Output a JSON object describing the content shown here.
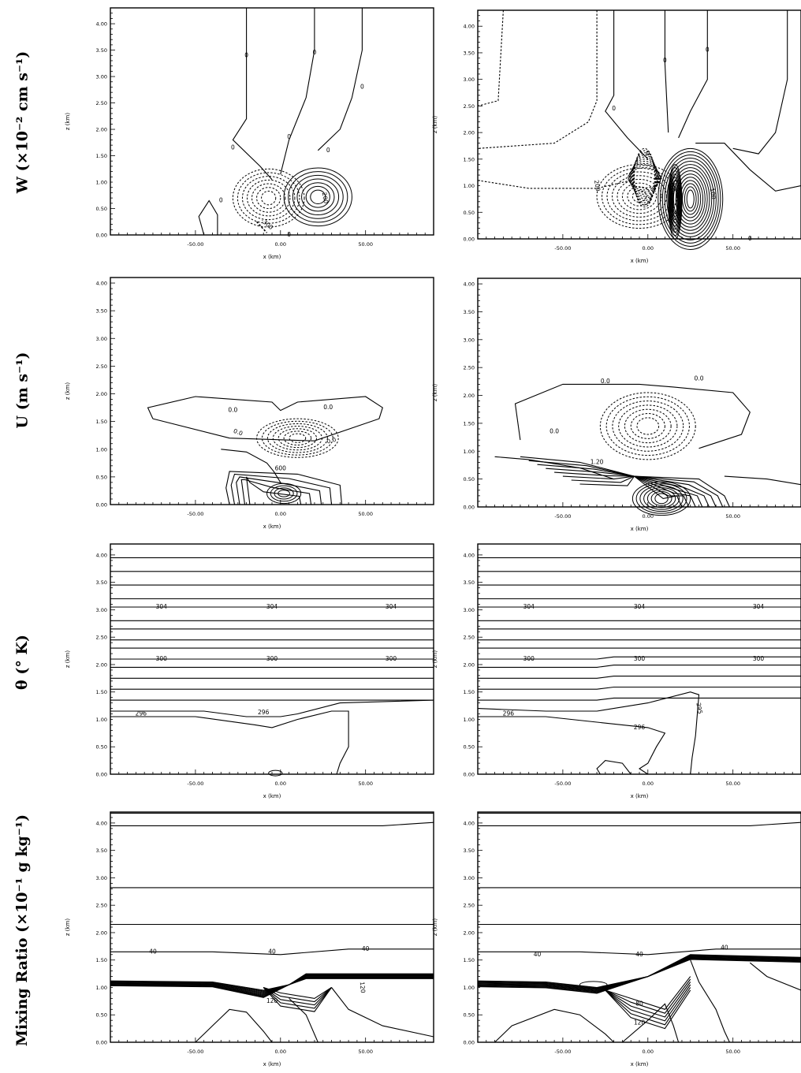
{
  "row_labels": [
    "W (×10⁻² cm s⁻¹)",
    "U (m s⁻¹)",
    "θ (° K)",
    "Mixing Ratio (×10⁻¹ g kg⁻¹)"
  ],
  "chart_data": [
    {
      "type": "contour",
      "panel": "W-left",
      "xlabel": "x (km)",
      "ylabel": "z (km)",
      "xlim": [
        -100,
        90
      ],
      "ylim": [
        0,
        4.3
      ],
      "xticks": [
        "-50.00",
        "0.00",
        "50.00"
      ],
      "yticks": [
        "0.00",
        "0.50",
        "1.00",
        "1.50",
        "2.00",
        "2.50",
        "3.00",
        "3.50",
        "4.00"
      ],
      "contour_labels": [
        "0",
        "0",
        "0",
        "0",
        "0",
        "0",
        "0",
        "0",
        "-300",
        "200"
      ]
    },
    {
      "type": "contour",
      "panel": "W-right",
      "xlabel": "x (km)",
      "ylabel": "z (km)",
      "xlim": [
        -100,
        90
      ],
      "ylim": [
        0,
        4.3
      ],
      "xticks": [
        "-50.00",
        "0.00",
        "50.00"
      ],
      "yticks": [
        "0.00",
        "0.50",
        "1.00",
        "1.50",
        "2.00",
        "2.50",
        "3.00",
        "3.50",
        "4.00"
      ],
      "contour_labels": [
        "0",
        "0",
        "0",
        "0",
        "0",
        "200",
        "100"
      ]
    },
    {
      "type": "contour",
      "panel": "U-left",
      "xlabel": "x (km)",
      "ylabel": "z (km)",
      "xlim": [
        -100,
        90
      ],
      "ylim": [
        0,
        4.1
      ],
      "xticks": [
        "-50.00",
        "0.00",
        "50.00"
      ],
      "yticks": [
        "0.00",
        "0.50",
        "1.00",
        "1.50",
        "2.00",
        "2.50",
        "3.00",
        "3.50",
        "4.00"
      ],
      "contour_labels": [
        "0.0",
        "0.0",
        "0.0",
        "0.0",
        "600"
      ]
    },
    {
      "type": "contour",
      "panel": "U-right",
      "xlabel": "x (km)",
      "ylabel": "z (km)",
      "xlim": [
        -100,
        90
      ],
      "ylim": [
        0,
        4.1
      ],
      "xticks": [
        "-50.00",
        "0.00",
        "50.00"
      ],
      "yticks": [
        "0.00",
        "0.50",
        "1.00",
        "1.50",
        "2.00",
        "2.50",
        "3.00",
        "3.50",
        "4.00"
      ],
      "contour_labels": [
        "0.0",
        "0.0",
        "0.0",
        "1.20"
      ]
    },
    {
      "type": "contour",
      "panel": "theta-left",
      "xlabel": "x (km)",
      "ylabel": "z (km)",
      "xlim": [
        -100,
        90
      ],
      "ylim": [
        0,
        4.2
      ],
      "xticks": [
        "-50.00",
        "0.00",
        "50.00"
      ],
      "yticks": [
        "0.00",
        "0.50",
        "1.00",
        "1.50",
        "2.00",
        "2.50",
        "3.00",
        "3.50",
        "4.00"
      ],
      "contour_labels": [
        "304",
        "304",
        "304",
        "300",
        "300",
        "300",
        "296",
        "296"
      ]
    },
    {
      "type": "contour",
      "panel": "theta-right",
      "xlabel": "x (km)",
      "ylabel": "z (km)",
      "xlim": [
        -100,
        90
      ],
      "ylim": [
        0,
        4.2
      ],
      "xticks": [
        "-50.00",
        "0.00",
        "50.00"
      ],
      "yticks": [
        "0.00",
        "0.50",
        "1.00",
        "1.50",
        "2.00",
        "2.50",
        "3.00",
        "3.50",
        "4.00"
      ],
      "contour_labels": [
        "304",
        "304",
        "304",
        "300",
        "300",
        "300",
        "296",
        "296",
        "295"
      ]
    },
    {
      "type": "contour",
      "panel": "mixing-left",
      "xlabel": "x (km)",
      "ylabel": "z (km)",
      "xlim": [
        -100,
        90
      ],
      "ylim": [
        0,
        4.2
      ],
      "xticks": [
        "-50.00",
        "0.00",
        "50.00"
      ],
      "yticks": [
        "0.00",
        "0.50",
        "1.00",
        "1.50",
        "2.00",
        "2.50",
        "3.00",
        "3.50",
        "4.00"
      ],
      "contour_labels": [
        "40",
        "40",
        "40",
        "120",
        "120"
      ]
    },
    {
      "type": "contour",
      "panel": "mixing-right",
      "xlabel": "x (km)",
      "ylabel": "z (km)",
      "xlim": [
        -100,
        90
      ],
      "ylim": [
        0,
        4.2
      ],
      "xticks": [
        "-50.00",
        "0.00",
        "50.00"
      ],
      "yticks": [
        "0.00",
        "0.50",
        "1.00",
        "1.50",
        "2.00",
        "2.50",
        "3.00",
        "3.50",
        "4.00"
      ],
      "contour_labels": [
        "40",
        "40",
        "40",
        "80",
        "120"
      ]
    }
  ]
}
